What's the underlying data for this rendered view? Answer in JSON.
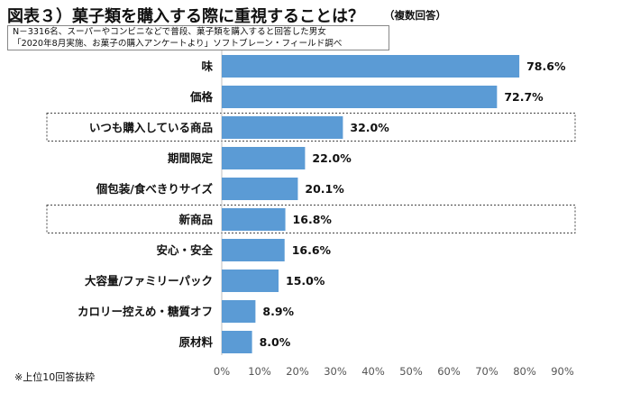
{
  "title": "図表３）菓子類を購入する際に重視することは？",
  "note_right": "（複数回答）",
  "source_lines": [
    "N－3316名、スーパーやコンビニなどで普段、菓子類を購入すると回答した男女",
    "「2020年8月実施、お菓子の購入アンケートより」ソフトブレーン・フィールド調べ"
  ],
  "footnote": "※上位10回答抜粋",
  "colors": {
    "bar": "#5B9BD5",
    "highlight_box": "#444444",
    "axis": "#bfbfbf"
  },
  "chart_data": {
    "type": "bar",
    "orientation": "horizontal",
    "categories": [
      "味",
      "価格",
      "いつも購入している商品",
      "期間限定",
      "個包装/食べきりサイズ",
      "新商品",
      "安心・安全",
      "大容量/ファミリーパック",
      "カロリー控えめ・糖質オフ",
      "原材料"
    ],
    "values": [
      78.6,
      72.7,
      32.0,
      22.0,
      20.1,
      16.8,
      16.6,
      15.0,
      8.9,
      8.0
    ],
    "value_labels": [
      "78.6%",
      "72.7%",
      "32.0%",
      "22.0%",
      "20.1%",
      "16.8%",
      "16.6%",
      "15.0%",
      "8.9%",
      "8.0%"
    ],
    "highlighted": [
      "いつも購入している商品",
      "新商品"
    ],
    "xlim": [
      0,
      90
    ],
    "xticks": [
      "0%",
      "10%",
      "20%",
      "30%",
      "40%",
      "50%",
      "60%",
      "70%",
      "80%",
      "90%"
    ],
    "grid": false,
    "legend": "none"
  }
}
